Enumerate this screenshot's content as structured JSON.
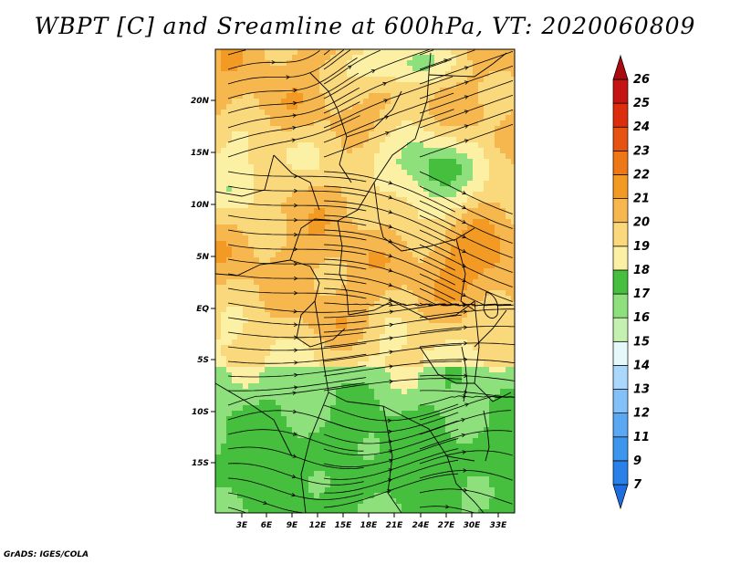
{
  "title": "WBPT [C] and Sreamline at 600hPa, VT: 2020060809",
  "credit": "GrADS: IGES/COLA",
  "axes": {
    "lat_labels": [
      "20N",
      "15N",
      "10N",
      "5N",
      "EQ",
      "5S",
      "10S",
      "15S"
    ],
    "lon_labels": [
      "3E",
      "6E",
      "9E",
      "12E",
      "15E",
      "18E",
      "21E",
      "24E",
      "27E",
      "30E",
      "33E"
    ]
  },
  "colorbar": {
    "labels": [
      "7",
      "9",
      "11",
      "12",
      "13",
      "14",
      "15",
      "16",
      "17",
      "18",
      "19",
      "20",
      "21",
      "22",
      "23",
      "24",
      "25",
      "26"
    ],
    "colors": [
      "#1e6ee0",
      "#2880e8",
      "#3c96ee",
      "#5aa8f2",
      "#82c0f8",
      "#aad8fc",
      "#e6f8fa",
      "#c4f0b0",
      "#8ee07c",
      "#46be3e",
      "#fcf0a4",
      "#fad87c",
      "#f6b84e",
      "#f39a24",
      "#ee7818",
      "#e65210",
      "#dc2e0c",
      "#c41414",
      "#a80c10"
    ]
  },
  "field_colors": {
    "green_dark": "#46be3e",
    "green_mid": "#8ee07c",
    "green_light": "#c4f0b0",
    "yellow": "#fcf0a4",
    "light_orange": "#fad87c",
    "orange": "#f6b84e",
    "dark_orange": "#f39a24"
  }
}
